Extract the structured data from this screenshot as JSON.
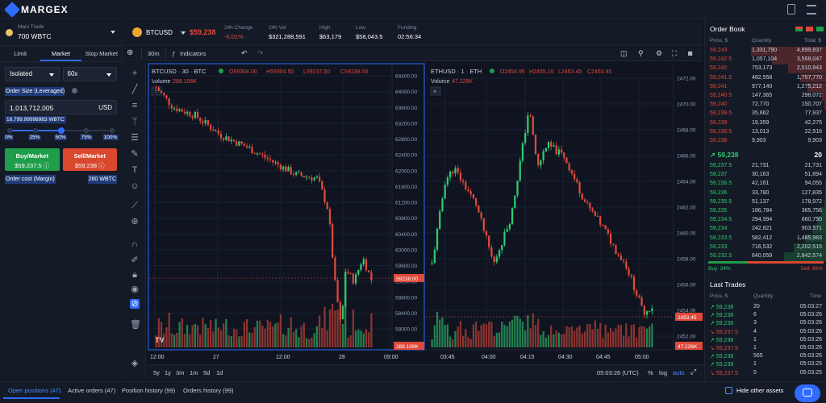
{
  "app": {
    "brand": "MARGEX"
  },
  "account": {
    "label": "Main Trade",
    "value": "700 WBTC"
  },
  "order_tabs": [
    "Limit",
    "Market",
    "Stop Market"
  ],
  "order_form": {
    "margin_mode": "Isolated",
    "leverage": "60x",
    "size_label": "Order Size (Leveraged)",
    "size_value": "1,013,712,005",
    "size_unit": "USD",
    "max_line": "16,799.99998983 WBTC",
    "slider_percent": 50,
    "slider_ticks": [
      "0%",
      "25%",
      "50%",
      "75%",
      "100%"
    ],
    "buy_label": "Buy/Market",
    "buy_price": "$59,237.5",
    "sell_label": "Sell/Market",
    "sell_price": "$59,238",
    "cost_label": "Order cost (Margin)",
    "cost_value": "280 WBTC"
  },
  "ticker": {
    "symbol": "BTCUSD",
    "price": "$59,238",
    "stats": [
      {
        "label": "24h Change",
        "value": "-6.01%",
        "negative": true
      },
      {
        "label": "24h Vol",
        "value": "$321,288,591",
        "negative": false
      },
      {
        "label": "High",
        "value": "$63,179",
        "negative": false
      },
      {
        "label": "Low",
        "value": "$58,043.5",
        "negative": false
      },
      {
        "label": "Funding",
        "value": "02:56:34",
        "negative": false
      }
    ]
  },
  "chart_toolbar": {
    "interval": "30m",
    "indicators": "Indicators"
  },
  "charts": {
    "left": {
      "title": "BTCUSD · 30 · BTC",
      "ohlc": [
        "O59304.00",
        "H59304.50",
        "L59237.50",
        "C59238.00"
      ],
      "volume": "Volume",
      "volume_value": "288.106K",
      "last_price": "59238.00",
      "last_volume": "288.106K",
      "y_ticks": [
        "64400.00",
        "64000.00",
        "63600.00",
        "63200.00",
        "62800.00",
        "62400.00",
        "62000.00",
        "61600.00",
        "61200.00",
        "60800.00",
        "60400.00",
        "60000.00",
        "59600.00",
        "59200.00",
        "58800.00",
        "58400.00",
        "58000.00"
      ],
      "x_ticks": [
        "12:00",
        "27",
        "12:00",
        "28",
        "09:00"
      ]
    },
    "right": {
      "title": "ETHUSD · 1 · ETH",
      "ohlc": [
        "O2454.95",
        "H2455.10",
        "L2453.45",
        "C2453.45"
      ],
      "volume": "Volume",
      "volume_value": "47.226K",
      "last_price": "2453.45",
      "last_volume": "47.226K",
      "y_ticks": [
        "2472.00",
        "2470.00",
        "2468.00",
        "2466.00",
        "2464.00",
        "2462.00",
        "2460.00",
        "2458.00",
        "2456.00",
        "2454.00",
        "2452.00"
      ],
      "x_ticks": [
        "03:45",
        "04:00",
        "04:15",
        "04:30",
        "04:45",
        "05:00"
      ]
    }
  },
  "chart_bottom": {
    "ranges": [
      "5y",
      "1y",
      "3m",
      "1m",
      "5d",
      "1d"
    ],
    "time": "05:03:26 (UTC)",
    "percent": "%",
    "log": "log",
    "auto": "auto"
  },
  "order_book": {
    "title": "Order Book",
    "headers": [
      "Price, $",
      "Quantity",
      "Total, $"
    ],
    "asks": [
      {
        "price": "59,243",
        "qty": "1,331,790",
        "total": "4,899,837",
        "depth": 0.62
      },
      {
        "price": "59,242.5",
        "qty": "1,057,104",
        "total": "3,568,047",
        "depth": 0.45
      },
      {
        "price": "59,242",
        "qty": "753,173",
        "total": "2,510,943",
        "depth": 0.32
      },
      {
        "price": "59,241.5",
        "qty": "482,558",
        "total": "1,757,770",
        "depth": 0.22
      },
      {
        "price": "59,241",
        "qty": "977,140",
        "total": "1,275,212",
        "depth": 0.16
      },
      {
        "price": "59,240.5",
        "qty": "147,365",
        "total": "298,072",
        "depth": 0.04
      },
      {
        "price": "59,240",
        "qty": "72,770",
        "total": "150,707",
        "depth": 0.02
      },
      {
        "price": "59,239.5",
        "qty": "35,662",
        "total": "77,937",
        "depth": 0.01
      },
      {
        "price": "59,239",
        "qty": "19,359",
        "total": "42,275",
        "depth": 0.005
      },
      {
        "price": "59,238.5",
        "qty": "13,013",
        "total": "22,916",
        "depth": 0.003
      },
      {
        "price": "59,238",
        "qty": "9,903",
        "total": "9,903",
        "depth": 0.001
      }
    ],
    "mid_price": "59,238",
    "mid_count": "20",
    "bids": [
      {
        "price": "59,237.5",
        "qty": "21,731",
        "total": "21,731",
        "depth": 0.003
      },
      {
        "price": "59,237",
        "qty": "30,163",
        "total": "51,894",
        "depth": 0.006
      },
      {
        "price": "59,236.5",
        "qty": "42,161",
        "total": "94,055",
        "depth": 0.012
      },
      {
        "price": "59,236",
        "qty": "33,780",
        "total": "127,835",
        "depth": 0.016
      },
      {
        "price": "59,235.5",
        "qty": "51,137",
        "total": "178,972",
        "depth": 0.022
      },
      {
        "price": "59,235",
        "qty": "186,784",
        "total": "365,756",
        "depth": 0.045
      },
      {
        "price": "59,234.5",
        "qty": "294,994",
        "total": "660,750",
        "depth": 0.08
      },
      {
        "price": "59,234",
        "qty": "242,821",
        "total": "903,571",
        "depth": 0.11
      },
      {
        "price": "59,233.5",
        "qty": "582,412",
        "total": "1,485,983",
        "depth": 0.18
      },
      {
        "price": "59,233",
        "qty": "716,532",
        "total": "2,202,515",
        "depth": 0.27
      },
      {
        "price": "59,232.5",
        "qty": "640,059",
        "total": "2,842,574",
        "depth": 0.35
      }
    ],
    "buy_pct": "Buy: 34%",
    "sell_pct": "Sell: 66%",
    "buy_ratio": 0.34
  },
  "last_trades": {
    "title": "Last Trades",
    "headers": [
      "Price, $",
      "Quantity",
      "Time"
    ],
    "rows": [
      {
        "price": "59,238",
        "qty": "20",
        "time": "05:03:27",
        "side": "up"
      },
      {
        "price": "59,238",
        "qty": "6",
        "time": "05:03:26",
        "side": "up"
      },
      {
        "price": "59,238",
        "qty": "3",
        "time": "05:03:26",
        "side": "up"
      },
      {
        "price": "59,237.5",
        "qty": "4",
        "time": "05:03:26",
        "side": "down"
      },
      {
        "price": "59,238",
        "qty": "1",
        "time": "05:03:26",
        "side": "up"
      },
      {
        "price": "59,237.5",
        "qty": "1",
        "time": "05:03:26",
        "side": "down"
      },
      {
        "price": "59,238",
        "qty": "565",
        "time": "05:03:26",
        "side": "up"
      },
      {
        "price": "59,238",
        "qty": "1",
        "time": "05:03:25",
        "side": "up"
      },
      {
        "price": "59,237.5",
        "qty": "5",
        "time": "05:03:25",
        "side": "down"
      }
    ]
  },
  "bottom_tabs": [
    "Open positions (47)",
    "Active orders (47)",
    "Position history (99)",
    "Orders history (99)"
  ],
  "hide_other_assets": "Hide other assets",
  "colors": {
    "accent": "#2f6bff",
    "up": "#2ecc71",
    "down": "#e0493a",
    "bg": "#0f1420"
  }
}
